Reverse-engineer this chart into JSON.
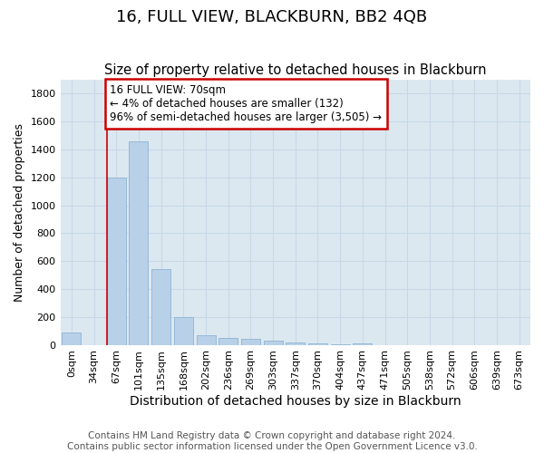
{
  "title": "16, FULL VIEW, BLACKBURN, BB2 4QB",
  "subtitle": "Size of property relative to detached houses in Blackburn",
  "xlabel": "Distribution of detached houses by size in Blackburn",
  "ylabel": "Number of detached properties",
  "categories": [
    "0sqm",
    "34sqm",
    "67sqm",
    "101sqm",
    "135sqm",
    "168sqm",
    "202sqm",
    "236sqm",
    "269sqm",
    "303sqm",
    "337sqm",
    "370sqm",
    "404sqm",
    "437sqm",
    "471sqm",
    "505sqm",
    "538sqm",
    "572sqm",
    "606sqm",
    "639sqm",
    "673sqm"
  ],
  "values": [
    90,
    0,
    1200,
    1460,
    540,
    200,
    70,
    50,
    45,
    30,
    20,
    10,
    5,
    10,
    0,
    0,
    0,
    0,
    0,
    0,
    0
  ],
  "bar_color": "#b8d0e8",
  "bar_edge_color": "#8eb4d4",
  "marker_label_line1": "16 FULL VIEW: 70sqm",
  "marker_label_line2": "← 4% of detached houses are smaller (132)",
  "marker_label_line3": "96% of semi-detached houses are larger (3,505) →",
  "annotation_box_color": "#cc0000",
  "grid_color": "#c8d8e8",
  "background_color": "#dce8f0",
  "ylim": [
    0,
    1900
  ],
  "yticks": [
    0,
    200,
    400,
    600,
    800,
    1000,
    1200,
    1400,
    1600,
    1800
  ],
  "footer": "Contains HM Land Registry data © Crown copyright and database right 2024.\nContains public sector information licensed under the Open Government Licence v3.0.",
  "title_fontsize": 13,
  "subtitle_fontsize": 10.5,
  "xlabel_fontsize": 10,
  "ylabel_fontsize": 9,
  "tick_fontsize": 8,
  "annotation_fontsize": 8.5,
  "footer_fontsize": 7.5
}
